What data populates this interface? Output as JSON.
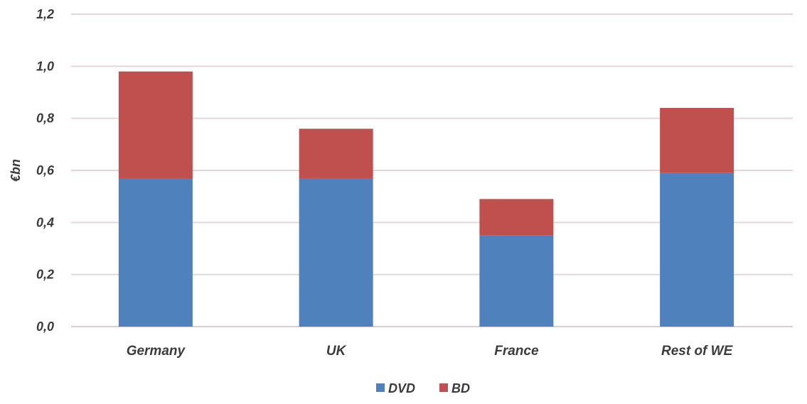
{
  "chart_data": {
    "type": "bar",
    "stacked": true,
    "categories": [
      "Germany",
      "UK",
      "France",
      "Rest of WE"
    ],
    "series": [
      {
        "name": "DVD",
        "color": "#4f81bd",
        "values": [
          0.57,
          0.57,
          0.35,
          0.59
        ]
      },
      {
        "name": "BD",
        "color": "#c0504d",
        "values": [
          0.41,
          0.19,
          0.14,
          0.25
        ]
      }
    ],
    "title": "",
    "xlabel": "",
    "ylabel": "€bn",
    "ylim": [
      0,
      1.2
    ],
    "yticks": [
      "0,0",
      "0,2",
      "0,4",
      "0,6",
      "0,8",
      "1,0",
      "1,2"
    ],
    "ytick_values": [
      0,
      0.2,
      0.4,
      0.6,
      0.8,
      1.0,
      1.2
    ],
    "grid": true,
    "legend_position": "bottom"
  }
}
